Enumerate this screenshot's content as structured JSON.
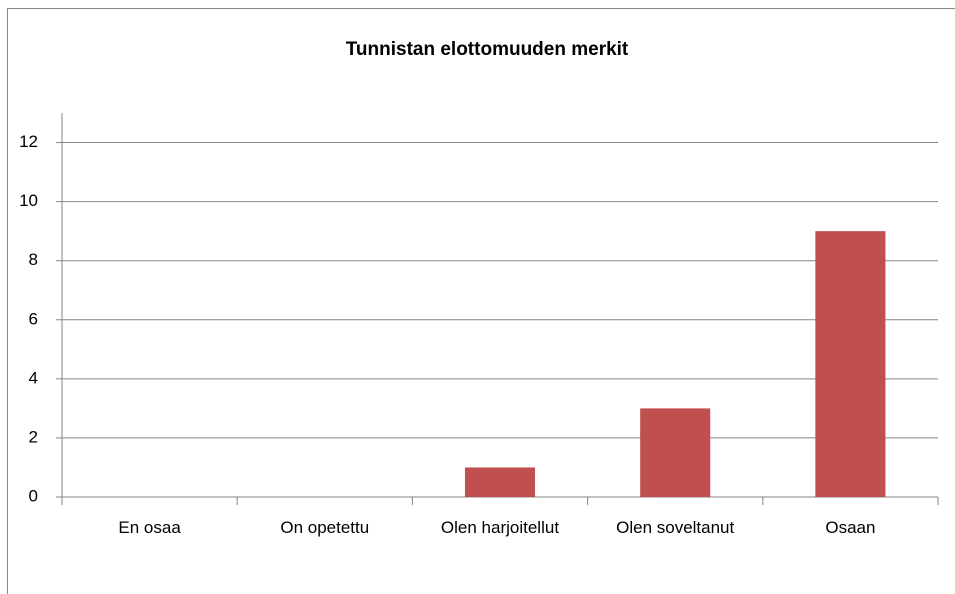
{
  "chart_data": {
    "type": "bar",
    "title": "Tunnistan elottomuuden merkit",
    "categories": [
      "En osaa",
      "On opetettu",
      "Olen harjoitellut",
      "Olen soveltanut",
      "Osaan"
    ],
    "values": [
      0,
      0,
      1,
      3,
      9
    ],
    "color": "#c0504d",
    "ylim": [
      0,
      13
    ],
    "yticks": [
      0,
      2,
      4,
      6,
      8,
      10,
      12
    ],
    "grid": true
  }
}
